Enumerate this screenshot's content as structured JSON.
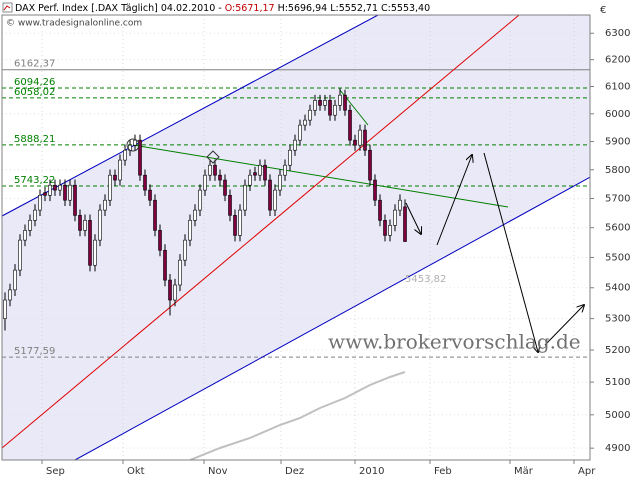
{
  "chart_data": {
    "type": "candlestick",
    "title": [
      "DAX Perf. Index [.DAX Täglich] 04.02.2010 -",
      "O:5671,17",
      "H:5696,94 L:5552,71 C:5553,40"
    ],
    "subtitle": "© www.tradesignalonline.com",
    "y_unit": "€",
    "watermark": "www.brokervorschlag.de",
    "annotation": "5453,82",
    "x": [
      0,
      1,
      2,
      3,
      4,
      5,
      6,
      7,
      8,
      9,
      10,
      11,
      12,
      13,
      14,
      15,
      16,
      17,
      18,
      19,
      20,
      21,
      22,
      23,
      24,
      25,
      26,
      27,
      28,
      29,
      30,
      31,
      32,
      33,
      34,
      35,
      36,
      37,
      38,
      39,
      40,
      41,
      42,
      43,
      44,
      45,
      46,
      47,
      48,
      49,
      50,
      51,
      52,
      53,
      54,
      55,
      56,
      57,
      58,
      59,
      60,
      61,
      62,
      63,
      64,
      65,
      66,
      67,
      68,
      69,
      70,
      71,
      72,
      73,
      74,
      75,
      76,
      77,
      78,
      79,
      80
    ],
    "open": [
      5300,
      5360,
      5393,
      5458,
      5558,
      5591,
      5625,
      5660,
      5720,
      5711,
      5746,
      5729,
      5746,
      5694,
      5746,
      5642,
      5591,
      5625,
      5474,
      5558,
      5660,
      5694,
      5781,
      5764,
      5834,
      5869,
      5887,
      5905,
      5781,
      5729,
      5694,
      5591,
      5524,
      5425,
      5360,
      5409,
      5491,
      5558,
      5625,
      5660,
      5729,
      5781,
      5816,
      5781,
      5764,
      5711,
      5642,
      5574,
      5660,
      5746,
      5790,
      5781,
      5816,
      5764,
      5660,
      5729,
      5781,
      5816,
      5869,
      5905,
      5959,
      5977,
      6013,
      6049,
      6031,
      6049,
      5995,
      6031,
      6068,
      6013,
      5905,
      5887,
      5941,
      5869,
      5764,
      5694,
      5625,
      5574,
      5608,
      5660,
      5671.17
    ],
    "high": [
      5385,
      5413,
      5478,
      5578,
      5611,
      5645,
      5680,
      5731,
      5740,
      5766,
      5766,
      5766,
      5766,
      5766,
      5766,
      5662,
      5645,
      5645,
      5578,
      5680,
      5714,
      5801,
      5801,
      5854,
      5889,
      5907,
      5925,
      5925,
      5801,
      5749,
      5714,
      5611,
      5544,
      5445,
      5429,
      5511,
      5578,
      5645,
      5680,
      5749,
      5801,
      5836,
      5836,
      5801,
      5784,
      5731,
      5662,
      5680,
      5766,
      5801,
      5810,
      5836,
      5836,
      5784,
      5749,
      5801,
      5836,
      5889,
      5925,
      5979,
      5997,
      6033,
      6069,
      6069,
      6069,
      6069,
      6051,
      6094,
      6088,
      6033,
      5925,
      5961,
      5961,
      5889,
      5784,
      5714,
      5645,
      5628,
      5680,
      5714,
      5696.94
    ],
    "low": [
      5262,
      5340,
      5373,
      5438,
      5538,
      5571,
      5605,
      5640,
      5691,
      5691,
      5709,
      5709,
      5674,
      5674,
      5622,
      5571,
      5571,
      5454,
      5454,
      5538,
      5640,
      5674,
      5744,
      5744,
      5814,
      5849,
      5867,
      5761,
      5709,
      5674,
      5571,
      5504,
      5405,
      5310,
      5340,
      5389,
      5471,
      5538,
      5605,
      5640,
      5709,
      5761,
      5761,
      5744,
      5691,
      5622,
      5554,
      5554,
      5640,
      5726,
      5761,
      5761,
      5744,
      5640,
      5640,
      5709,
      5761,
      5796,
      5849,
      5885,
      5939,
      5957,
      5993,
      6011,
      6011,
      5975,
      5975,
      6011,
      5993,
      5885,
      5867,
      5867,
      5849,
      5744,
      5674,
      5605,
      5554,
      5554,
      5588,
      5640,
      5552.71
    ],
    "close": [
      5360,
      5393,
      5458,
      5558,
      5591,
      5625,
      5660,
      5711,
      5711,
      5746,
      5729,
      5746,
      5694,
      5746,
      5642,
      5591,
      5625,
      5474,
      5558,
      5660,
      5694,
      5781,
      5764,
      5834,
      5869,
      5887,
      5905,
      5781,
      5729,
      5694,
      5591,
      5524,
      5425,
      5360,
      5409,
      5491,
      5558,
      5625,
      5660,
      5729,
      5781,
      5816,
      5781,
      5764,
      5711,
      5642,
      5574,
      5660,
      5746,
      5781,
      5781,
      5816,
      5764,
      5660,
      5729,
      5781,
      5816,
      5869,
      5905,
      5959,
      5977,
      6013,
      6049,
      6031,
      6049,
      5995,
      6031,
      6068,
      6013,
      5905,
      5887,
      5941,
      5869,
      5764,
      5694,
      5625,
      5574,
      5608,
      5660,
      5694,
      5553.4
    ],
    "up_color": "#ffffff",
    "down_color": "#800040",
    "xlim": [
      -0.6,
      117
    ],
    "xticks": [
      {
        "value": 7.4,
        "label": "Sep"
      },
      {
        "value": 23.6,
        "label": "Okt"
      },
      {
        "value": 39.8,
        "label": "Nov"
      },
      {
        "value": 55.2,
        "label": "Dez"
      },
      {
        "value": 70,
        "label": "2010"
      },
      {
        "value": 85,
        "label": "Feb"
      },
      {
        "value": 101,
        "label": "Mär"
      },
      {
        "value": 113.8,
        "label": "Apr"
      }
    ],
    "ylim": [
      4865,
      6370
    ],
    "yticks": [
      4900,
      5000,
      5100,
      5200,
      5300,
      5400,
      5500,
      5600,
      5700,
      5800,
      5900,
      6000,
      6100,
      6200,
      6300
    ],
    "log_y": true,
    "grid": true,
    "levels": [
      {
        "value": 6162.37,
        "label": "6162,37",
        "color": "#808080",
        "dashed": false
      },
      {
        "value": 6094.26,
        "label": "6094,26",
        "color": "#008000",
        "dashed": true
      },
      {
        "value": 6058.02,
        "label": "6058,02",
        "color": "#008000",
        "dashed": true
      },
      {
        "value": 5888.21,
        "label": "5888,21",
        "color": "#008000",
        "dashed": true
      },
      {
        "value": 5743.22,
        "label": "5743,22",
        "color": "#008000",
        "dashed": true
      },
      {
        "value": 5177.59,
        "label": "5177,59",
        "color": "#808080",
        "dashed": true
      }
    ]
  }
}
